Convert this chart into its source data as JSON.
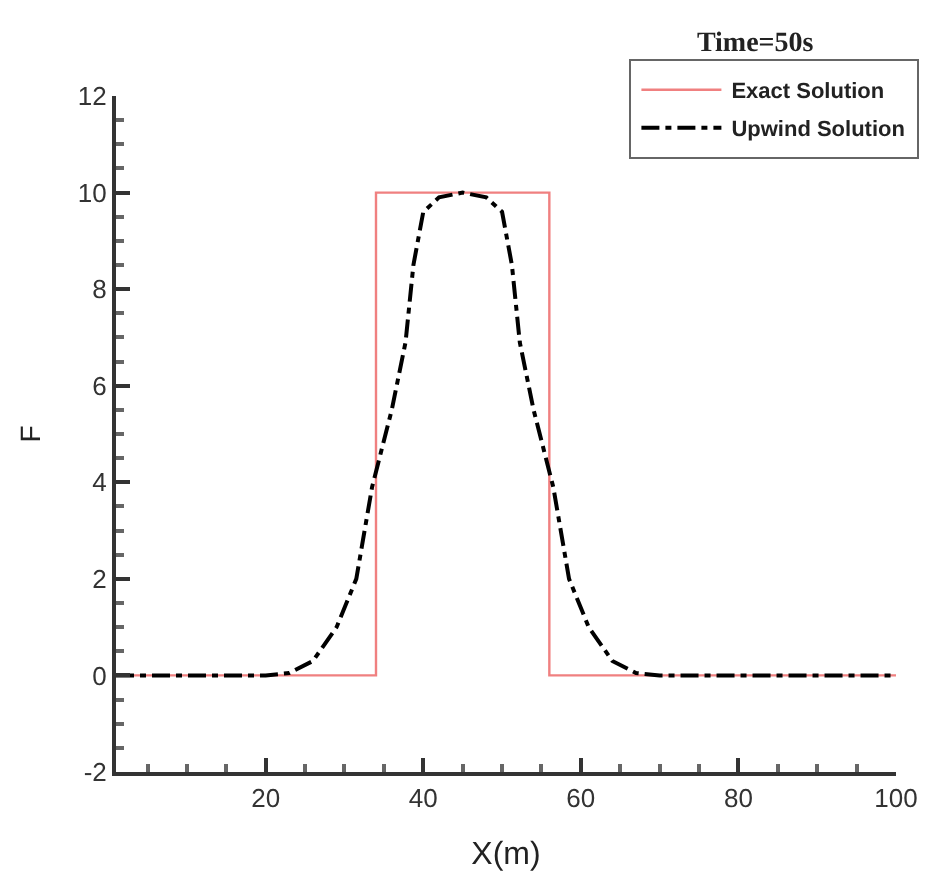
{
  "chart_data": {
    "type": "line",
    "title": "Time=50s",
    "xlabel": "X(m)",
    "ylabel": "F",
    "xlim": [
      1,
      100
    ],
    "xticks": [
      20,
      40,
      60,
      80,
      100
    ],
    "ylim": [
      -2,
      12
    ],
    "yticks": [
      -2,
      0,
      2,
      4,
      6,
      8,
      10,
      12
    ],
    "legend": "top right",
    "series": [
      {
        "name": "Exact Solution",
        "color": "#f08080",
        "line_style": "solid",
        "x": [
          1,
          34,
          34,
          56,
          56,
          100
        ],
        "values": [
          0,
          0,
          10,
          10,
          0,
          0
        ]
      },
      {
        "name": "Upwind Solution",
        "color": "#000000",
        "line_style": "dashdot",
        "x": [
          1,
          20,
          23,
          26,
          29,
          31.5,
          33.5,
          36,
          37.75,
          38.75,
          40,
          42,
          45,
          48,
          50,
          51.25,
          52.25,
          54,
          56.5,
          58.5,
          61,
          64,
          67,
          70,
          100
        ],
        "values": [
          0,
          0,
          0.05,
          0.3,
          1,
          2,
          3.9,
          5.5,
          6.9,
          8.5,
          9.6,
          9.9,
          10,
          9.9,
          9.6,
          8.5,
          6.9,
          5.5,
          3.9,
          2,
          1,
          0.3,
          0.05,
          0,
          0
        ]
      }
    ]
  }
}
